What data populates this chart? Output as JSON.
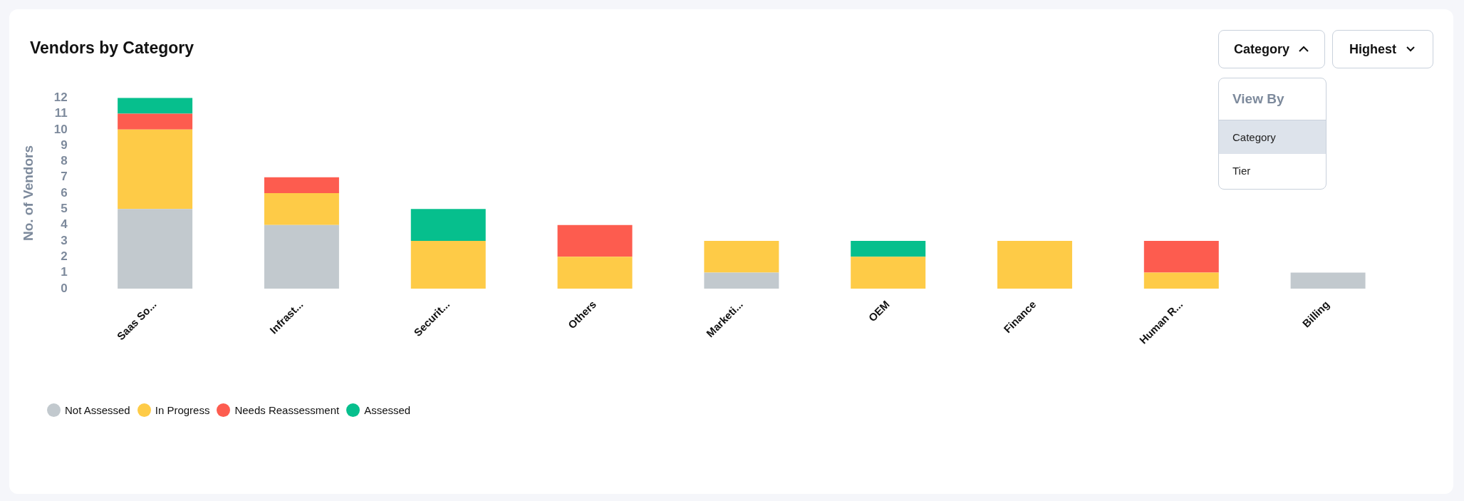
{
  "chart_data": {
    "type": "bar",
    "title": "Vendors by Category",
    "ylabel": "No. of Vendors",
    "categories": [
      "Saas So...",
      "Infrast...",
      "Securit...",
      "Others",
      "Marketi...",
      "OEM",
      "Finance",
      "Human R...",
      "Billing"
    ],
    "series": [
      {
        "name": "Not Assessed",
        "color": "#c2c9ce",
        "values": [
          5,
          4,
          0,
          0,
          1,
          0,
          0,
          0,
          1
        ]
      },
      {
        "name": "In Progress",
        "color": "#fecb47",
        "values": [
          5,
          2,
          3,
          2,
          2,
          2,
          3,
          1,
          0
        ]
      },
      {
        "name": "Needs Reassessment",
        "color": "#fd5c4f",
        "values": [
          1,
          1,
          0,
          2,
          0,
          0,
          0,
          2,
          0
        ]
      },
      {
        "name": "Assessed",
        "color": "#06bf8d",
        "values": [
          1,
          0,
          2,
          0,
          0,
          1,
          0,
          0,
          0
        ]
      }
    ],
    "stacked": true,
    "ylim": [
      0,
      12
    ],
    "yticks": [
      0,
      1,
      2,
      3,
      4,
      5,
      6,
      7,
      8,
      9,
      10,
      11,
      12
    ],
    "grid": false,
    "legend": "bottom",
    "annotations": [
      "Category",
      "Highest",
      "View By",
      "Category",
      "Tier"
    ]
  }
}
